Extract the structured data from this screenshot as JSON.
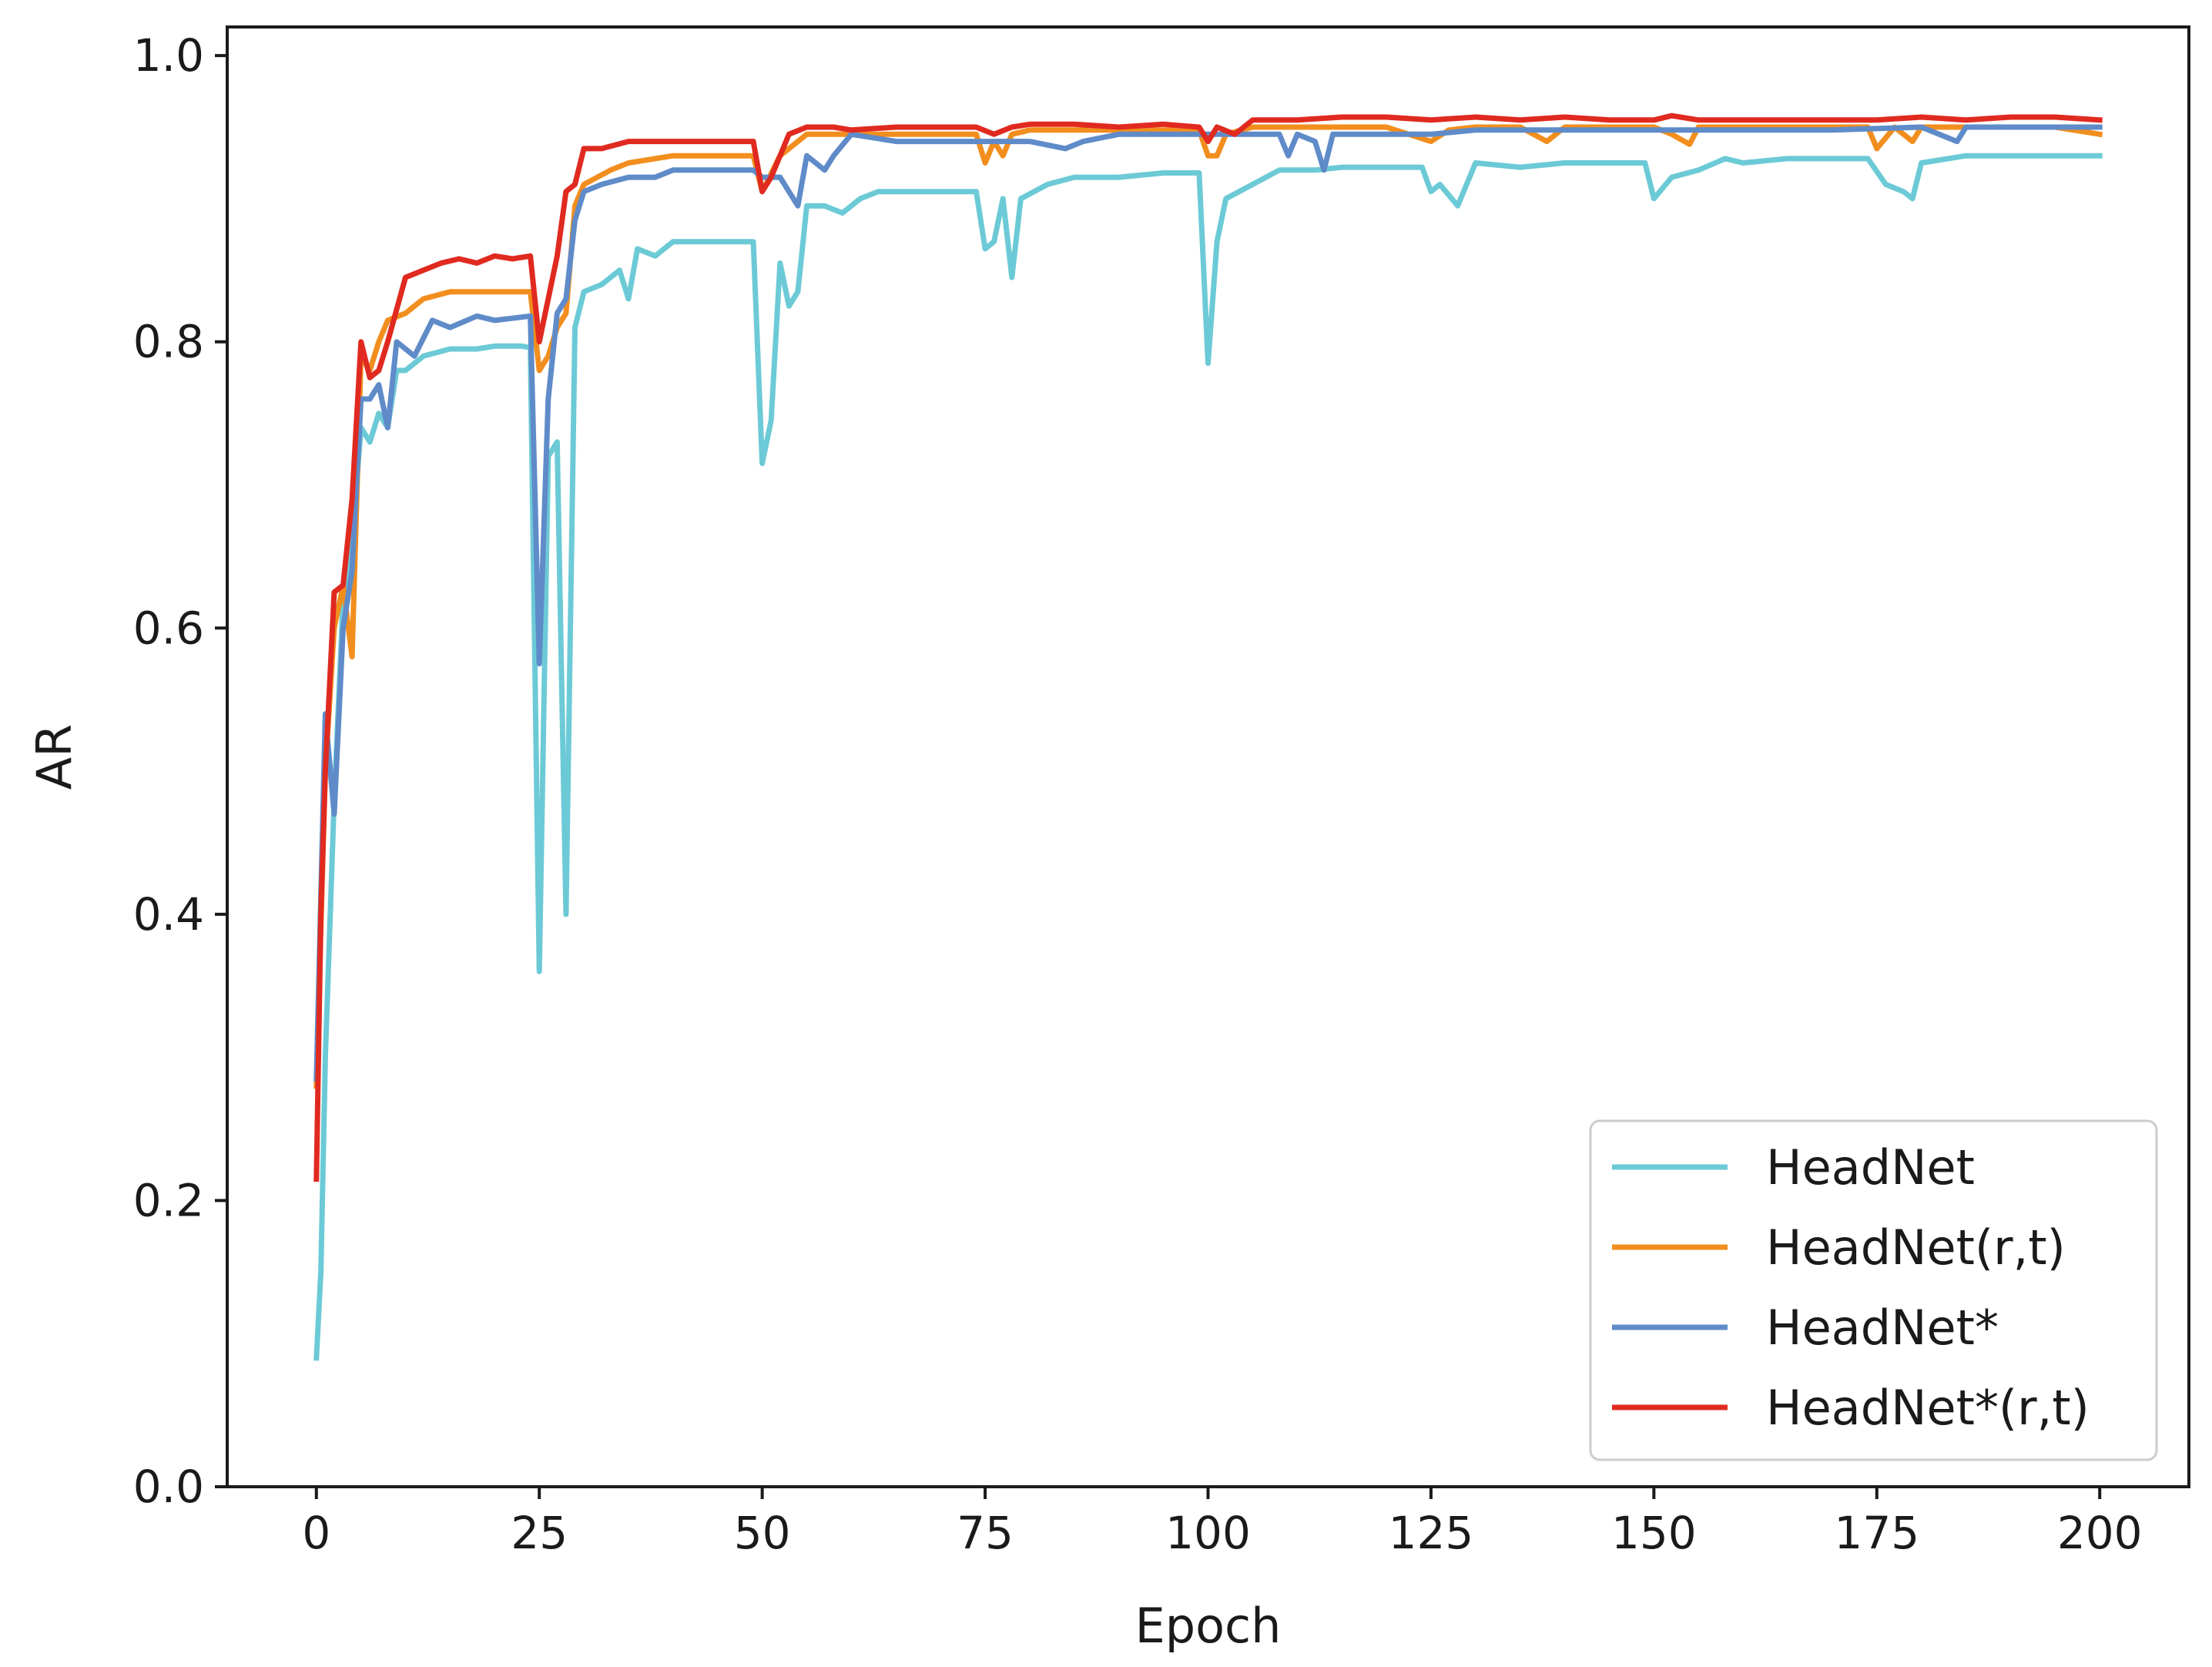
{
  "chart_data": {
    "type": "line",
    "title": "",
    "xlabel": "Epoch",
    "ylabel": "AR",
    "xlim": [
      -10,
      210
    ],
    "ylim": [
      0.0,
      1.02
    ],
    "x_ticks": [
      0,
      25,
      50,
      75,
      100,
      125,
      150,
      175,
      200
    ],
    "x_tick_labels": [
      "0",
      "25",
      "50",
      "75",
      "100",
      "125",
      "150",
      "175",
      "200"
    ],
    "y_ticks": [
      0.0,
      0.2,
      0.4,
      0.6,
      0.8,
      1.0
    ],
    "y_tick_labels": [
      "0.0",
      "0.2",
      "0.4",
      "0.6",
      "0.8",
      "1.0"
    ],
    "grid": false,
    "legend_position": "bottom-right",
    "series": [
      {
        "name": "HeadNet",
        "color": "#6ccad6",
        "points": [
          [
            0,
            0.09
          ],
          [
            0.5,
            0.15
          ],
          [
            1,
            0.3
          ],
          [
            2,
            0.48
          ],
          [
            3,
            0.62
          ],
          [
            4,
            0.66
          ],
          [
            5,
            0.74
          ],
          [
            6,
            0.73
          ],
          [
            7,
            0.75
          ],
          [
            8,
            0.74
          ],
          [
            9,
            0.78
          ],
          [
            10,
            0.78
          ],
          [
            12,
            0.79
          ],
          [
            15,
            0.795
          ],
          [
            18,
            0.795
          ],
          [
            20,
            0.797
          ],
          [
            23,
            0.797
          ],
          [
            24,
            0.796
          ],
          [
            25,
            0.36
          ],
          [
            26,
            0.72
          ],
          [
            27,
            0.73
          ],
          [
            28,
            0.4
          ],
          [
            29,
            0.81
          ],
          [
            30,
            0.835
          ],
          [
            32,
            0.84
          ],
          [
            34,
            0.85
          ],
          [
            35,
            0.83
          ],
          [
            36,
            0.865
          ],
          [
            38,
            0.86
          ],
          [
            40,
            0.87
          ],
          [
            45,
            0.87
          ],
          [
            49,
            0.87
          ],
          [
            50,
            0.715
          ],
          [
            51,
            0.745
          ],
          [
            52,
            0.855
          ],
          [
            53,
            0.825
          ],
          [
            54,
            0.835
          ],
          [
            55,
            0.895
          ],
          [
            57,
            0.895
          ],
          [
            59,
            0.89
          ],
          [
            61,
            0.9
          ],
          [
            63,
            0.905
          ],
          [
            70,
            0.905
          ],
          [
            74,
            0.905
          ],
          [
            75,
            0.865
          ],
          [
            76,
            0.87
          ],
          [
            77,
            0.9
          ],
          [
            78,
            0.845
          ],
          [
            79,
            0.9
          ],
          [
            82,
            0.91
          ],
          [
            85,
            0.915
          ],
          [
            90,
            0.915
          ],
          [
            95,
            0.918
          ],
          [
            99,
            0.918
          ],
          [
            100,
            0.785
          ],
          [
            101,
            0.87
          ],
          [
            102,
            0.9
          ],
          [
            105,
            0.91
          ],
          [
            108,
            0.92
          ],
          [
            112,
            0.92
          ],
          [
            115,
            0.922
          ],
          [
            120,
            0.922
          ],
          [
            124,
            0.922
          ],
          [
            125,
            0.905
          ],
          [
            126,
            0.91
          ],
          [
            128,
            0.895
          ],
          [
            129,
            0.91
          ],
          [
            130,
            0.925
          ],
          [
            135,
            0.922
          ],
          [
            140,
            0.925
          ],
          [
            145,
            0.925
          ],
          [
            149,
            0.925
          ],
          [
            150,
            0.9
          ],
          [
            152,
            0.915
          ],
          [
            155,
            0.92
          ],
          [
            158,
            0.928
          ],
          [
            160,
            0.925
          ],
          [
            165,
            0.928
          ],
          [
            170,
            0.928
          ],
          [
            174,
            0.928
          ],
          [
            176,
            0.91
          ],
          [
            178,
            0.905
          ],
          [
            179,
            0.9
          ],
          [
            180,
            0.925
          ],
          [
            185,
            0.93
          ],
          [
            190,
            0.93
          ],
          [
            195,
            0.93
          ],
          [
            200,
            0.93
          ]
        ]
      },
      {
        "name": "HeadNet(r,t)",
        "color": "#f28e1e",
        "points": [
          [
            0,
            0.28
          ],
          [
            1,
            0.5
          ],
          [
            2,
            0.6
          ],
          [
            3,
            0.63
          ],
          [
            4,
            0.58
          ],
          [
            5,
            0.79
          ],
          [
            6,
            0.78
          ],
          [
            7,
            0.8
          ],
          [
            8,
            0.815
          ],
          [
            10,
            0.82
          ],
          [
            12,
            0.83
          ],
          [
            15,
            0.835
          ],
          [
            20,
            0.835
          ],
          [
            24,
            0.835
          ],
          [
            25,
            0.78
          ],
          [
            26,
            0.79
          ],
          [
            27,
            0.81
          ],
          [
            28,
            0.82
          ],
          [
            29,
            0.895
          ],
          [
            30,
            0.91
          ],
          [
            33,
            0.92
          ],
          [
            35,
            0.925
          ],
          [
            40,
            0.93
          ],
          [
            45,
            0.93
          ],
          [
            49,
            0.93
          ],
          [
            50,
            0.905
          ],
          [
            52,
            0.93
          ],
          [
            54,
            0.94
          ],
          [
            55,
            0.945
          ],
          [
            60,
            0.945
          ],
          [
            65,
            0.945
          ],
          [
            70,
            0.945
          ],
          [
            74,
            0.945
          ],
          [
            75,
            0.925
          ],
          [
            76,
            0.94
          ],
          [
            77,
            0.93
          ],
          [
            78,
            0.945
          ],
          [
            80,
            0.948
          ],
          [
            85,
            0.948
          ],
          [
            90,
            0.948
          ],
          [
            95,
            0.948
          ],
          [
            99,
            0.948
          ],
          [
            100,
            0.93
          ],
          [
            101,
            0.93
          ],
          [
            102,
            0.945
          ],
          [
            105,
            0.95
          ],
          [
            110,
            0.95
          ],
          [
            115,
            0.95
          ],
          [
            120,
            0.95
          ],
          [
            125,
            0.94
          ],
          [
            127,
            0.948
          ],
          [
            130,
            0.95
          ],
          [
            135,
            0.95
          ],
          [
            138,
            0.94
          ],
          [
            140,
            0.95
          ],
          [
            145,
            0.95
          ],
          [
            150,
            0.95
          ],
          [
            152,
            0.945
          ],
          [
            154,
            0.938
          ],
          [
            155,
            0.95
          ],
          [
            160,
            0.95
          ],
          [
            165,
            0.95
          ],
          [
            170,
            0.95
          ],
          [
            174,
            0.95
          ],
          [
            175,
            0.935
          ],
          [
            177,
            0.95
          ],
          [
            179,
            0.94
          ],
          [
            180,
            0.95
          ],
          [
            185,
            0.95
          ],
          [
            190,
            0.95
          ],
          [
            195,
            0.95
          ],
          [
            200,
            0.945
          ]
        ]
      },
      {
        "name": "HeadNet*",
        "color": "#5f8bc9",
        "points": [
          [
            0,
            0.285
          ],
          [
            1,
            0.54
          ],
          [
            2,
            0.47
          ],
          [
            3,
            0.6
          ],
          [
            4,
            0.64
          ],
          [
            5,
            0.76
          ],
          [
            6,
            0.76
          ],
          [
            7,
            0.77
          ],
          [
            8,
            0.74
          ],
          [
            9,
            0.8
          ],
          [
            11,
            0.79
          ],
          [
            13,
            0.815
          ],
          [
            15,
            0.81
          ],
          [
            18,
            0.818
          ],
          [
            20,
            0.815
          ],
          [
            24,
            0.818
          ],
          [
            25,
            0.575
          ],
          [
            26,
            0.76
          ],
          [
            27,
            0.82
          ],
          [
            28,
            0.83
          ],
          [
            29,
            0.885
          ],
          [
            30,
            0.905
          ],
          [
            32,
            0.91
          ],
          [
            35,
            0.915
          ],
          [
            38,
            0.915
          ],
          [
            40,
            0.92
          ],
          [
            45,
            0.92
          ],
          [
            49,
            0.92
          ],
          [
            50,
            0.915
          ],
          [
            52,
            0.915
          ],
          [
            54,
            0.895
          ],
          [
            55,
            0.93
          ],
          [
            57,
            0.92
          ],
          [
            58,
            0.93
          ],
          [
            60,
            0.945
          ],
          [
            65,
            0.94
          ],
          [
            70,
            0.94
          ],
          [
            74,
            0.94
          ],
          [
            76,
            0.94
          ],
          [
            80,
            0.94
          ],
          [
            84,
            0.935
          ],
          [
            86,
            0.94
          ],
          [
            90,
            0.945
          ],
          [
            95,
            0.945
          ],
          [
            99,
            0.945
          ],
          [
            100,
            0.945
          ],
          [
            105,
            0.945
          ],
          [
            108,
            0.945
          ],
          [
            109,
            0.93
          ],
          [
            110,
            0.945
          ],
          [
            112,
            0.94
          ],
          [
            113,
            0.92
          ],
          [
            114,
            0.945
          ],
          [
            120,
            0.945
          ],
          [
            125,
            0.945
          ],
          [
            130,
            0.948
          ],
          [
            140,
            0.948
          ],
          [
            150,
            0.948
          ],
          [
            160,
            0.948
          ],
          [
            170,
            0.948
          ],
          [
            180,
            0.95
          ],
          [
            184,
            0.94
          ],
          [
            185,
            0.95
          ],
          [
            190,
            0.95
          ],
          [
            195,
            0.95
          ],
          [
            200,
            0.95
          ]
        ]
      },
      {
        "name": "HeadNet*(r,t)",
        "color": "#e02a20",
        "points": [
          [
            0,
            0.215
          ],
          [
            0.5,
            0.4
          ],
          [
            1,
            0.5
          ],
          [
            2,
            0.625
          ],
          [
            3,
            0.63
          ],
          [
            4,
            0.69
          ],
          [
            5,
            0.8
          ],
          [
            6,
            0.775
          ],
          [
            7,
            0.78
          ],
          [
            8,
            0.8
          ],
          [
            10,
            0.845
          ],
          [
            12,
            0.85
          ],
          [
            14,
            0.855
          ],
          [
            16,
            0.858
          ],
          [
            18,
            0.855
          ],
          [
            20,
            0.86
          ],
          [
            22,
            0.858
          ],
          [
            24,
            0.86
          ],
          [
            25,
            0.8
          ],
          [
            26,
            0.83
          ],
          [
            27,
            0.86
          ],
          [
            28,
            0.905
          ],
          [
            29,
            0.91
          ],
          [
            30,
            0.935
          ],
          [
            32,
            0.935
          ],
          [
            35,
            0.94
          ],
          [
            40,
            0.94
          ],
          [
            45,
            0.94
          ],
          [
            49,
            0.94
          ],
          [
            50,
            0.905
          ],
          [
            51,
            0.915
          ],
          [
            52,
            0.93
          ],
          [
            53,
            0.945
          ],
          [
            55,
            0.95
          ],
          [
            58,
            0.95
          ],
          [
            60,
            0.948
          ],
          [
            65,
            0.95
          ],
          [
            70,
            0.95
          ],
          [
            74,
            0.95
          ],
          [
            76,
            0.945
          ],
          [
            78,
            0.95
          ],
          [
            80,
            0.952
          ],
          [
            85,
            0.952
          ],
          [
            90,
            0.95
          ],
          [
            95,
            0.952
          ],
          [
            99,
            0.95
          ],
          [
            100,
            0.94
          ],
          [
            101,
            0.95
          ],
          [
            103,
            0.945
          ],
          [
            105,
            0.955
          ],
          [
            110,
            0.955
          ],
          [
            115,
            0.957
          ],
          [
            120,
            0.957
          ],
          [
            125,
            0.955
          ],
          [
            130,
            0.957
          ],
          [
            135,
            0.955
          ],
          [
            140,
            0.957
          ],
          [
            145,
            0.955
          ],
          [
            150,
            0.955
          ],
          [
            152,
            0.958
          ],
          [
            155,
            0.955
          ],
          [
            160,
            0.955
          ],
          [
            165,
            0.955
          ],
          [
            170,
            0.955
          ],
          [
            175,
            0.955
          ],
          [
            180,
            0.957
          ],
          [
            185,
            0.955
          ],
          [
            190,
            0.957
          ],
          [
            195,
            0.957
          ],
          [
            200,
            0.955
          ]
        ]
      }
    ]
  }
}
